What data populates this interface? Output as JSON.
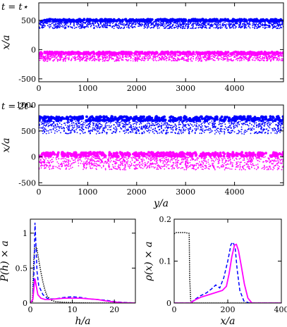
{
  "chart_data": [
    {
      "id": "snapshot-1",
      "type": "scatter",
      "panel_label": "t = t⋆",
      "xlabel": "",
      "ylabel": "x/a",
      "xlim": [
        0,
        5000
      ],
      "ylim": [
        -550,
        800
      ],
      "xticks": [
        0,
        1000,
        2000,
        3000,
        4000
      ],
      "xticklabels": [
        "0",
        "1000",
        "2000",
        "3000",
        "4000"
      ],
      "yticks": [
        500,
        0,
        -500
      ],
      "yticklabels": [
        "500",
        "0",
        "-500"
      ],
      "series": [
        {
          "color": "#0000ff",
          "band_center": 450,
          "band_min": 360,
          "band_max": 520
        },
        {
          "color": "#ff00ff",
          "band_center": -110,
          "band_min": -200,
          "band_max": -40
        }
      ]
    },
    {
      "id": "snapshot-2",
      "type": "scatter",
      "panel_label": "t = 2t⋆",
      "xlabel": "y/a",
      "ylabel": "x/a",
      "xlim": [
        0,
        5000
      ],
      "ylim": [
        -550,
        1000
      ],
      "xticks": [
        0,
        1000,
        2000,
        3000,
        4000
      ],
      "xticklabels": [
        "0",
        "1000",
        "2000",
        "3000",
        "4000"
      ],
      "yticks": [
        1000,
        500,
        0,
        -500
      ],
      "yticklabels": [
        "1000",
        "500",
        "0",
        "-500"
      ],
      "series": [
        {
          "color": "#0000ff",
          "band_center": 620,
          "band_min": 440,
          "band_max": 780
        },
        {
          "color": "#ff00ff",
          "band_center": -60,
          "band_min": -250,
          "band_max": 90
        }
      ]
    },
    {
      "id": "height-distribution",
      "type": "line",
      "xlabel": "h/a",
      "ylabel": "P(h) × a",
      "xlim": [
        0,
        25
      ],
      "ylim": [
        0,
        1.2
      ],
      "xticks": [
        0,
        10,
        20
      ],
      "xticklabels": [
        "0",
        "10",
        "20"
      ],
      "yticks": [
        0,
        0.5,
        1
      ],
      "yticklabels": [
        "0",
        "0.5",
        "1"
      ],
      "series": [
        {
          "style": "dotted",
          "color": "#000000",
          "x": [
            0,
            0.5,
            0.8,
            1.0,
            1.5,
            2.0,
            2.5,
            3.0,
            3.5,
            4.0,
            5.0,
            6.0,
            8.0,
            10.0,
            15.0,
            25.0
          ],
          "y": [
            0,
            0.02,
            0.6,
            0.78,
            0.8,
            0.62,
            0.45,
            0.3,
            0.18,
            0.1,
            0.04,
            0.02,
            0.01,
            0.005,
            0.0,
            0.0
          ]
        },
        {
          "style": "dashed",
          "color": "#0000ff",
          "x": [
            0,
            0.6,
            0.9,
            1.1,
            1.3,
            1.6,
            2.0,
            3.0,
            4.0,
            5.0,
            6.0,
            8.0,
            10.0,
            12.0,
            14.0,
            16.0,
            18.0,
            20.0,
            22.0,
            25.0
          ],
          "y": [
            0,
            0.05,
            0.5,
            1.15,
            0.9,
            0.45,
            0.25,
            0.12,
            0.07,
            0.06,
            0.06,
            0.08,
            0.09,
            0.08,
            0.06,
            0.05,
            0.04,
            0.02,
            0.01,
            0.0
          ]
        },
        {
          "style": "solid",
          "color": "#ff00ff",
          "x": [
            0,
            0.6,
            0.9,
            1.1,
            1.4,
            1.8,
            2.5,
            3.5,
            4.5,
            6.0,
            8.0,
            10.0,
            12.0,
            14.0,
            16.0,
            18.0,
            20.0,
            22.0,
            25.0
          ],
          "y": [
            0,
            0.05,
            0.25,
            0.35,
            0.25,
            0.12,
            0.07,
            0.05,
            0.05,
            0.06,
            0.07,
            0.07,
            0.07,
            0.06,
            0.05,
            0.03,
            0.015,
            0.005,
            0.0
          ]
        }
      ]
    },
    {
      "id": "density-profile",
      "type": "line",
      "xlabel": "x/a",
      "ylabel": "ρ(x) × a",
      "xlim": [
        0,
        400
      ],
      "ylim": [
        0,
        0.2
      ],
      "xticks": [
        0,
        200,
        400
      ],
      "xticklabels": [
        "0",
        "200",
        "400"
      ],
      "yticks": [
        0,
        0.1,
        0.2
      ],
      "yticklabels": [
        "0",
        "0.1",
        "0.2"
      ],
      "series": [
        {
          "style": "dotted",
          "color": "#000000",
          "x": [
            0,
            5,
            40,
            56,
            58,
            62,
            80,
            400
          ],
          "y": [
            0.165,
            0.168,
            0.168,
            0.166,
            0.06,
            0.0,
            0.0,
            0.0
          ]
        },
        {
          "style": "dashed",
          "color": "#0000ff",
          "x": [
            0,
            60,
            80,
            100,
            120,
            140,
            155,
            170,
            185,
            200,
            212,
            220,
            228,
            235,
            245,
            260,
            280,
            400
          ],
          "y": [
            0,
            0,
            0.01,
            0.018,
            0.024,
            0.034,
            0.043,
            0.036,
            0.06,
            0.1,
            0.14,
            0.145,
            0.13,
            0.08,
            0.03,
            0.005,
            0,
            0
          ]
        },
        {
          "style": "solid",
          "color": "#ff00ff",
          "x": [
            0,
            60,
            80,
            100,
            130,
            160,
            180,
            195,
            205,
            215,
            225,
            232,
            240,
            250,
            262,
            275,
            290,
            400
          ],
          "y": [
            0,
            0,
            0.008,
            0.014,
            0.02,
            0.026,
            0.03,
            0.04,
            0.07,
            0.11,
            0.138,
            0.14,
            0.125,
            0.09,
            0.045,
            0.012,
            0.0,
            0
          ]
        }
      ]
    }
  ]
}
